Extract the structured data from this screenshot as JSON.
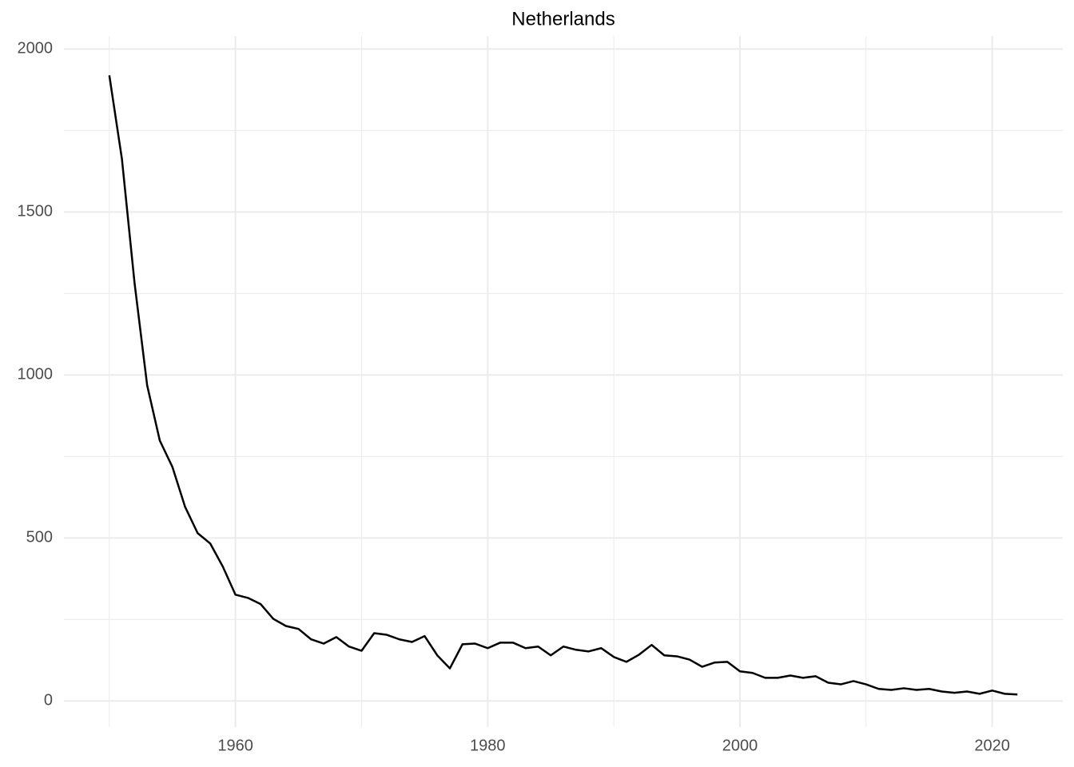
{
  "chart_data": {
    "type": "line",
    "title": "Netherlands",
    "x": [
      1950,
      1951,
      1952,
      1953,
      1954,
      1955,
      1956,
      1957,
      1958,
      1959,
      1960,
      1961,
      1962,
      1963,
      1964,
      1965,
      1966,
      1967,
      1968,
      1969,
      1970,
      1971,
      1972,
      1973,
      1974,
      1975,
      1976,
      1977,
      1978,
      1979,
      1980,
      1981,
      1982,
      1983,
      1984,
      1985,
      1986,
      1987,
      1988,
      1989,
      1990,
      1991,
      1992,
      1993,
      1994,
      1995,
      1996,
      1997,
      1998,
      1999,
      2000,
      2001,
      2002,
      2003,
      2004,
      2005,
      2006,
      2007,
      2008,
      2009,
      2010,
      2011,
      2012,
      2013,
      2014,
      2015,
      2016,
      2017,
      2018,
      2019,
      2020,
      2021,
      2022
    ],
    "series": [
      {
        "color": "#000000",
        "values": [
          1919,
          1662,
          1282,
          968,
          799,
          718,
          596,
          515,
          483,
          412,
          326,
          316,
          297,
          252,
          230,
          221,
          189,
          176,
          196,
          167,
          154,
          208,
          203,
          189,
          181,
          199,
          140,
          100,
          174,
          176,
          162,
          179,
          179,
          162,
          167,
          140,
          167,
          157,
          152,
          162,
          135,
          120,
          142,
          172,
          140,
          137,
          127,
          105,
          118,
          120,
          91,
          86,
          71,
          71,
          78,
          71,
          76,
          56,
          51,
          61,
          51,
          37,
          34,
          39,
          34,
          37,
          29,
          25,
          29,
          22,
          32,
          22,
          20
        ]
      }
    ],
    "xlim": [
      1946.4,
      2025.6
    ],
    "ylim": [
      -80,
      2040
    ],
    "xticks": [
      1960,
      1980,
      2000,
      2020
    ],
    "yticks": [
      0,
      500,
      1000,
      1500,
      2000
    ],
    "xminor": [
      1950,
      1970,
      1990,
      2010
    ],
    "yminor": [
      250,
      750,
      1250,
      1750
    ],
    "grid": true
  }
}
